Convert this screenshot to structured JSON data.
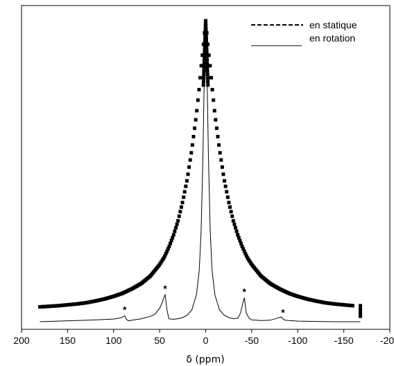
{
  "chart_data": {
    "type": "line",
    "title": "",
    "xlabel": "δ (ppm)",
    "ylabel": "",
    "xlim": [
      200,
      -200
    ],
    "x_reversed": true,
    "x_ticks": [
      200,
      150,
      100,
      50,
      0,
      -50,
      -100,
      -150,
      -200
    ],
    "x_tick_labels": [
      "200",
      "150",
      "100",
      "50",
      "0",
      "-50",
      "-100",
      "-150",
      "-200"
    ],
    "y_ticks_shown": false,
    "ylim": [
      0,
      1
    ],
    "grid": false,
    "legend_position": "top-right",
    "series": [
      {
        "name": "en statique",
        "line_style": "dashed",
        "marker": "square",
        "x": [
          180,
          170,
          160,
          150,
          140,
          130,
          120,
          110,
          100,
          90,
          80,
          70,
          60,
          50,
          45,
          40,
          35,
          30,
          25,
          20,
          15,
          10,
          7,
          5,
          3,
          1,
          0,
          -1,
          -3,
          -5,
          -7,
          -10,
          -15,
          -20,
          -25,
          -30,
          -35,
          -40,
          -45,
          -50,
          -60,
          -70,
          -80,
          -90,
          -100,
          -110,
          -120,
          -130,
          -140,
          -150,
          -160,
          -168
        ],
        "y": [
          0.02,
          0.022,
          0.024,
          0.027,
          0.03,
          0.034,
          0.04,
          0.047,
          0.056,
          0.067,
          0.082,
          0.1,
          0.126,
          0.165,
          0.19,
          0.224,
          0.265,
          0.315,
          0.38,
          0.458,
          0.56,
          0.68,
          0.77,
          0.84,
          0.9,
          0.965,
          1.0,
          0.965,
          0.9,
          0.84,
          0.77,
          0.68,
          0.56,
          0.458,
          0.38,
          0.315,
          0.265,
          0.224,
          0.19,
          0.165,
          0.126,
          0.1,
          0.082,
          0.067,
          0.056,
          0.047,
          0.04,
          0.034,
          0.03,
          0.027,
          0.024,
          -0.02
        ]
      },
      {
        "name": "en rotation",
        "line_style": "solid",
        "marker": "none",
        "x": [
          180,
          160,
          140,
          120,
          100,
          92,
          88,
          86,
          84,
          78,
          70,
          60,
          55,
          50,
          47,
          45,
          44,
          42,
          40,
          35,
          30,
          25,
          20,
          15,
          10,
          7,
          5,
          3,
          1,
          0,
          -1,
          -3,
          -5,
          -7,
          -10,
          -15,
          -20,
          -25,
          -30,
          -35,
          -38,
          -41,
          -42,
          -44,
          -47,
          -50,
          -60,
          -70,
          -78,
          -82,
          -84,
          -86,
          -90,
          -100,
          -120,
          -140,
          -160,
          -168
        ],
        "y": [
          0.0,
          0.002,
          0.004,
          0.006,
          0.009,
          0.013,
          0.02,
          0.008,
          0.003,
          0.006,
          0.01,
          0.018,
          0.025,
          0.045,
          0.065,
          0.085,
          0.09,
          0.04,
          0.01,
          0.008,
          0.01,
          0.014,
          0.022,
          0.04,
          0.09,
          0.17,
          0.3,
          0.55,
          0.92,
          1.0,
          0.92,
          0.55,
          0.3,
          0.17,
          0.09,
          0.04,
          0.022,
          0.014,
          0.01,
          0.012,
          0.03,
          0.07,
          0.08,
          0.03,
          0.012,
          0.006,
          0.004,
          0.005,
          0.012,
          0.016,
          0.01,
          0.005,
          0.004,
          0.002,
          0.001,
          0.0,
          0.0,
          0.0
        ]
      }
    ],
    "annotations": [
      {
        "text": "*",
        "x": 88
      },
      {
        "text": "*",
        "x": 44
      },
      {
        "text": "*",
        "x": -42
      },
      {
        "text": "*",
        "x": -84
      }
    ]
  }
}
